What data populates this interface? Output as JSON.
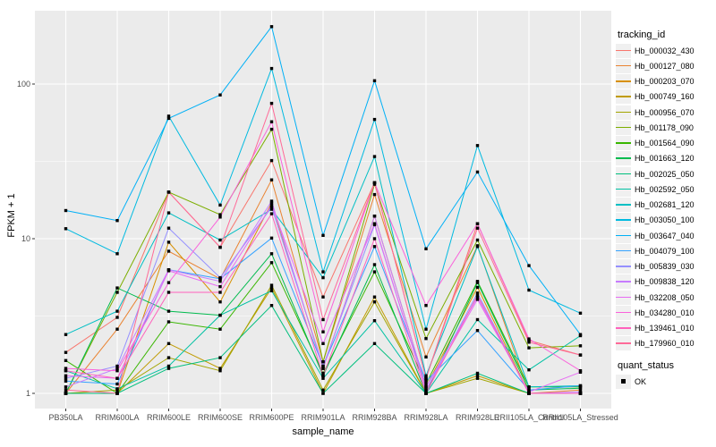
{
  "chart_data": {
    "type": "line",
    "title": "",
    "xlabel": "sample_name",
    "ylabel": "FPKM + 1",
    "y_scale": "log10",
    "y_ticks": [
      1,
      10,
      100
    ],
    "ylim_log": [
      -0.1,
      2.47
    ],
    "grid": true,
    "panel_bg": "#EBEBEB",
    "grid_color": "#FFFFFF",
    "tick_color": "#333333",
    "tick_label_color": "#4D4D4D",
    "point_color": "#000000",
    "legend_title": "tracking_id",
    "legend_position": "right",
    "categories": [
      "PB350LA",
      "RRIM600LA",
      "RRIM600LE",
      "RRIM600SE",
      "RRIM600PE",
      "RRIM901LA",
      "RRIM928BA",
      "RRIM928LA",
      "RRIM928LE",
      "RRII105LA_Control",
      "RRII105LA_Stressed"
    ],
    "series": [
      {
        "name": "Hb_000032_430",
        "color": "#F8766D",
        "values": [
          1.84,
          3.1,
          20,
          8.8,
          32,
          4.2,
          23,
          1.25,
          12.5,
          2.2,
          1.77
        ]
      },
      {
        "name": "Hb_000127_080",
        "color": "#EA8331",
        "values": [
          1.0,
          2.6,
          8.3,
          5.5,
          24,
          1.6,
          19.3,
          1.72,
          9.0,
          1.0,
          1.05
        ]
      },
      {
        "name": "Hb_000203_070",
        "color": "#D89000",
        "values": [
          1.0,
          1.0,
          9.5,
          3.9,
          17,
          1.45,
          14,
          1.1,
          4.85,
          1.0,
          1.0
        ]
      },
      {
        "name": "Hb_000749_160",
        "color": "#C09B00",
        "values": [
          1.0,
          1.0,
          2.1,
          1.45,
          4.8,
          1.0,
          4.2,
          1.0,
          1.3,
          1.0,
          1.0
        ]
      },
      {
        "name": "Hb_000956_070",
        "color": "#A3A500",
        "values": [
          1.0,
          1.05,
          1.7,
          1.4,
          5.0,
          1.05,
          3.9,
          1.0,
          1.25,
          1.0,
          1.0
        ]
      },
      {
        "name": "Hb_001178_090",
        "color": "#7CAE00",
        "values": [
          1.0,
          4.5,
          20,
          14.3,
          51,
          1.6,
          22.5,
          2.26,
          9.8,
          1.97,
          2.03
        ]
      },
      {
        "name": "Hb_001564_090",
        "color": "#39B600",
        "values": [
          1.63,
          1.0,
          2.9,
          2.6,
          7.0,
          1.35,
          6.1,
          1.15,
          5.3,
          1.1,
          1.1
        ]
      },
      {
        "name": "Hb_001663_120",
        "color": "#00BB4E",
        "values": [
          1.0,
          4.8,
          3.4,
          3.2,
          8.0,
          1.3,
          6.8,
          1.0,
          5.2,
          1.05,
          1.08
        ]
      },
      {
        "name": "Hb_002025_050",
        "color": "#00BF7D",
        "values": [
          1.0,
          1.0,
          1.45,
          1.7,
          3.7,
          1.0,
          2.1,
          1.0,
          1.35,
          1.0,
          1.0
        ]
      },
      {
        "name": "Hb_002592_050",
        "color": "#00C1A3",
        "values": [
          1.4,
          1.07,
          1.5,
          3.2,
          4.6,
          1.25,
          2.95,
          1.0,
          3.0,
          1.42,
          2.36
        ]
      },
      {
        "name": "Hb_002681_120",
        "color": "#00BFC4",
        "values": [
          2.4,
          3.4,
          14.7,
          9.8,
          15.5,
          5.6,
          34,
          1.3,
          8.9,
          1.1,
          1.12
        ]
      },
      {
        "name": "Hb_003050_100",
        "color": "#00BAE0",
        "values": [
          11.6,
          8.0,
          62,
          16.5,
          126,
          6.1,
          59,
          2.6,
          40,
          4.65,
          3.3
        ]
      },
      {
        "name": "Hb_003647_040",
        "color": "#00B0F6",
        "values": [
          15.2,
          13.1,
          60,
          85,
          235,
          10.5,
          105,
          8.6,
          27,
          6.7,
          2.4
        ]
      },
      {
        "name": "Hb_004079_100",
        "color": "#35A2FF",
        "values": [
          1.2,
          1.15,
          6.3,
          5.5,
          10.1,
          1.5,
          8.9,
          1.2,
          2.55,
          1.05,
          1.12
        ]
      },
      {
        "name": "Hb_005839_030",
        "color": "#9590FF",
        "values": [
          1.25,
          1.5,
          11.7,
          5.6,
          16,
          1.5,
          12.3,
          1.05,
          4.45,
          1.0,
          1.0
        ]
      },
      {
        "name": "Hb_009838_120",
        "color": "#C77CFF",
        "values": [
          1.1,
          1.45,
          6.3,
          5.3,
          17.5,
          1.45,
          14,
          1.1,
          4.2,
          1.0,
          1.02
        ]
      },
      {
        "name": "Hb_032208_050",
        "color": "#E76BF3",
        "values": [
          1.3,
          1.25,
          6.2,
          4.9,
          16.5,
          2.1,
          12.5,
          1.05,
          4.05,
          1.02,
          1.37
        ]
      },
      {
        "name": "Hb_034280_010",
        "color": "#FA62DB",
        "values": [
          1.45,
          1.4,
          5.2,
          13.8,
          57,
          2.5,
          23,
          3.7,
          12.5,
          2.25,
          1.4
        ]
      },
      {
        "name": "Hb_139461_010",
        "color": "#FF62BC",
        "values": [
          1.4,
          1.25,
          4.5,
          4.5,
          14.5,
          1.3,
          10,
          1.0,
          4.3,
          1.0,
          1.0
        ]
      },
      {
        "name": "Hb_179960_010",
        "color": "#FF6A98",
        "values": [
          1.05,
          1.0,
          20,
          8.8,
          75,
          3.0,
          23,
          1.25,
          11.7,
          2.14,
          1.77
        ]
      }
    ],
    "point_legend": {
      "title": "quant_status",
      "items": [
        {
          "label": "OK"
        }
      ]
    }
  }
}
